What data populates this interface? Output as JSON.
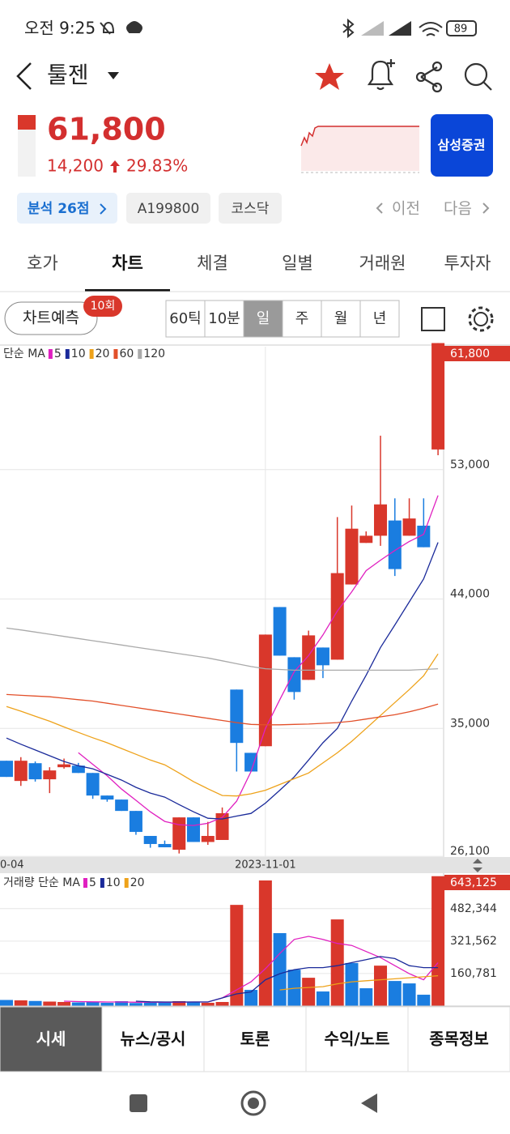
{
  "status_bar": {
    "time": "오전 9:25",
    "battery": "89"
  },
  "header": {
    "name": "툴젠",
    "price": "61,800",
    "change": "14,200",
    "change_pct": "29.83%",
    "broker": "삼성증권"
  },
  "tags": [
    "분석 26점",
    "A199800",
    "코스닥"
  ],
  "nav": {
    "prev": "이전",
    "next": "다음"
  },
  "tabs": [
    "호가",
    "차트",
    "체결",
    "일별",
    "거래원",
    "투자자"
  ],
  "active_tab": 1,
  "toolbar": {
    "predict": "차트예측",
    "badge": "10회",
    "periods": [
      "60틱",
      "10분",
      "일",
      "주",
      "월",
      "년"
    ],
    "active_period": 2
  },
  "price_chart": {
    "type": "candlestick",
    "legend_prefix": "단순 MA",
    "up_color": "#d9372b",
    "down_color": "#1a7de0",
    "ylim": [
      26000,
      62000
    ],
    "yticks": [
      {
        "value": 26100,
        "label": "26,100"
      },
      {
        "value": 35000,
        "label": "35,000"
      },
      {
        "value": 44000,
        "label": "44,000"
      },
      {
        "value": 53000,
        "label": "53,000"
      }
    ],
    "last_label": "61,800",
    "xticks": [
      {
        "value": 0,
        "label": "0-04"
      },
      {
        "value": 18,
        "label": "2023-11-01"
      }
    ],
    "candles": {
      "open": [
        32750,
        31344,
        32580,
        31460,
        32300,
        32410,
        31900,
        30330,
        30050,
        29260,
        27520,
        26960,
        26560,
        28810,
        27100,
        27240,
        37700,
        33300,
        33760,
        43440,
        39950,
        38375,
        40625,
        39780,
        45010,
        47900,
        48400,
        49460,
        48400,
        49100,
        54400
      ],
      "high": [
        32750,
        33000,
        32700,
        32300,
        32900,
        32600,
        31900,
        30330,
        30050,
        29260,
        27520,
        27200,
        28810,
        28810,
        28500,
        29500,
        37700,
        33300,
        41525,
        43440,
        39950,
        41800,
        40625,
        49700,
        50500,
        48700,
        55360,
        51000,
        51000,
        51000,
        61800
      ],
      "low": [
        31625,
        31000,
        31300,
        30500,
        32200,
        31900,
        30100,
        29900,
        29260,
        27600,
        26700,
        26730,
        26300,
        27100,
        26900,
        27240,
        32000,
        32000,
        33760,
        40060,
        37000,
        38375,
        38500,
        39780,
        45010,
        47900,
        47700,
        45600,
        48400,
        47600,
        54000
      ],
      "close": [
        31625,
        32750,
        31460,
        32075,
        32500,
        31900,
        30330,
        30050,
        29260,
        27800,
        26960,
        26730,
        28810,
        27100,
        27520,
        29100,
        33990,
        32000,
        41525,
        40060,
        37530,
        41470,
        39390,
        45800,
        48890,
        48400,
        50580,
        46080,
        49600,
        47600,
        61800
      ]
    },
    "ma_series": [
      {
        "name": "5",
        "color": "#e020c0",
        "values": [
          null,
          null,
          null,
          null,
          null,
          33310,
          32500,
          31700,
          30780,
          30000,
          29200,
          28530,
          28300,
          28250,
          28400,
          28810,
          29940,
          32000,
          35000,
          37000,
          38940,
          40060,
          41500,
          43160,
          44500,
          45970,
          46700,
          47375,
          48000,
          48500,
          51200
        ]
      },
      {
        "name": "10",
        "color": "#1a2a9a",
        "values": [
          34325,
          33900,
          33500,
          33100,
          32700,
          32400,
          32190,
          31800,
          31400,
          30900,
          30500,
          30220,
          29700,
          29200,
          28750,
          28700,
          28900,
          29090,
          29800,
          30700,
          31625,
          32800,
          34000,
          35000,
          36900,
          38700,
          40625,
          42200,
          43800,
          45400,
          47940
        ]
      },
      {
        "name": "20",
        "color": "#eea21a",
        "values": [
          36520,
          36200,
          35850,
          35500,
          35100,
          34720,
          34350,
          34000,
          33600,
          33200,
          32800,
          32470,
          31900,
          31300,
          30800,
          30330,
          30300,
          30450,
          30700,
          31100,
          31500,
          31900,
          32600,
          33300,
          34100,
          35000,
          35900,
          36800,
          37700,
          38660,
          40180
        ]
      },
      {
        "name": "60",
        "color": "#e2502a",
        "values": [
          37360,
          37300,
          37250,
          37200,
          37100,
          37000,
          36900,
          36750,
          36600,
          36450,
          36300,
          36150,
          36000,
          35850,
          35700,
          35550,
          35400,
          35280,
          35250,
          35250,
          35280,
          35300,
          35350,
          35400,
          35500,
          35650,
          35800,
          35950,
          36150,
          36400,
          36690
        ]
      },
      {
        "name": "120",
        "color": "#aaaaaa",
        "values": [
          41975,
          41850,
          41700,
          41550,
          41400,
          41250,
          41100,
          40950,
          40800,
          40650,
          40500,
          40350,
          40200,
          40050,
          39900,
          39700,
          39500,
          39300,
          39150,
          39100,
          39050,
          39050,
          39050,
          39050,
          39050,
          39050,
          39050,
          39050,
          39050,
          39100,
          39150
        ]
      }
    ]
  },
  "volume_chart": {
    "type": "bar",
    "legend_prefix": "거래량 단순 MA",
    "ylim": [
      0,
      650000
    ],
    "yticks": [
      {
        "value": 160781,
        "label": "160,781"
      },
      {
        "value": 321562,
        "label": "321,562"
      },
      {
        "value": 482344,
        "label": "482,344"
      }
    ],
    "last_label": "643,125",
    "values": [
      30000,
      28000,
      25000,
      22000,
      20000,
      18000,
      20000,
      16000,
      24000,
      15000,
      18000,
      20000,
      24000,
      22000,
      16000,
      20000,
      501000,
      80000,
      622000,
      361000,
      180000,
      140000,
      72000,
      429000,
      213000,
      88000,
      200000,
      124000,
      112000,
      56000,
      643125
    ],
    "colors": [
      "#1a7de0",
      "#d9372b",
      "#1a7de0",
      "#d9372b",
      "#d9372b",
      "#1a7de0",
      "#1a7de0",
      "#1a7de0",
      "#1a7de0",
      "#1a7de0",
      "#1a7de0",
      "#1a7de0",
      "#d9372b",
      "#1a7de0",
      "#d9372b",
      "#d9372b",
      "#d9372b",
      "#1a7de0",
      "#d9372b",
      "#1a7de0",
      "#1a7de0",
      "#d9372b",
      "#1a7de0",
      "#d9372b",
      "#1a7de0",
      "#1a7de0",
      "#d9372b",
      "#1a7de0",
      "#1a7de0",
      "#1a7de0",
      "#d9372b"
    ],
    "ma_series": [
      {
        "name": "5",
        "color": "#e020c0",
        "values": [
          null,
          null,
          null,
          null,
          24000,
          22000,
          21000,
          20000,
          20000,
          19000,
          18500,
          18500,
          19000,
          20000,
          20000,
          40000,
          80000,
          120000,
          185000,
          260000,
          330000,
          345000,
          330000,
          310000,
          300000,
          270000,
          240000,
          200000,
          160000,
          130000,
          215000
        ]
      },
      {
        "name": "10",
        "color": "#1a2a9a",
        "values": [
          null,
          null,
          null,
          null,
          null,
          null,
          null,
          null,
          null,
          24000,
          21000,
          20000,
          20000,
          20000,
          20000,
          40000,
          60000,
          70000,
          130000,
          160000,
          180000,
          190000,
          190000,
          200000,
          215000,
          230000,
          245000,
          235000,
          200000,
          190000,
          190000
        ]
      },
      {
        "name": "20",
        "color": "#eea21a",
        "values": [
          null,
          null,
          null,
          null,
          null,
          null,
          null,
          null,
          null,
          null,
          null,
          null,
          null,
          null,
          null,
          null,
          null,
          null,
          null,
          80000,
          88000,
          92000,
          96000,
          110000,
          120000,
          125000,
          130000,
          135000,
          140000,
          145000,
          150000
        ]
      }
    ]
  },
  "bottom_tabs": [
    "시세",
    "뉴스/공시",
    "토론",
    "수익/노트",
    "종목정보"
  ],
  "active_bottom_tab": 0
}
